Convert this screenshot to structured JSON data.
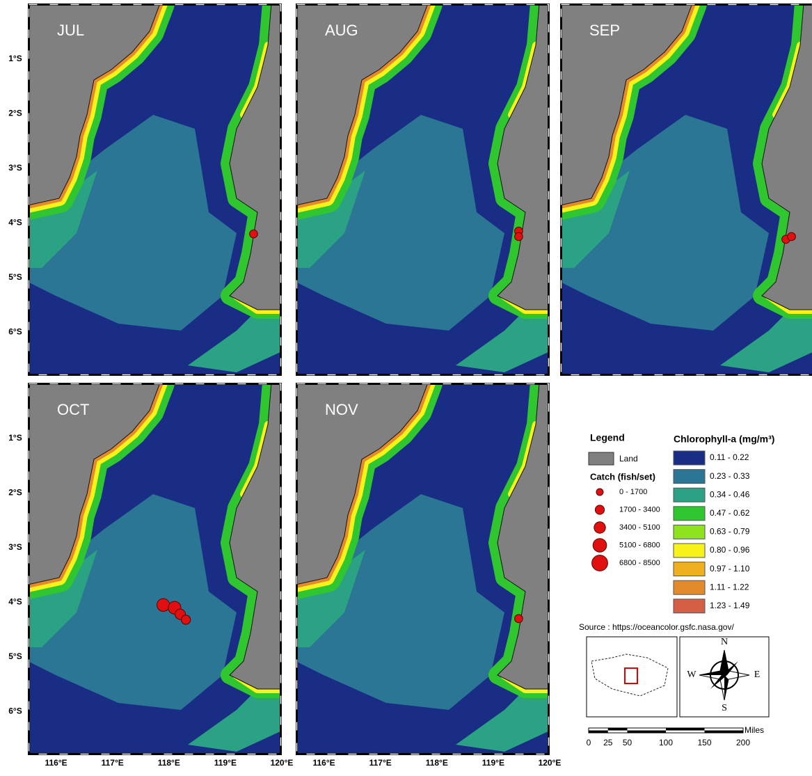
{
  "map": {
    "xlim": [
      115.5,
      120
    ],
    "ylim": [
      0.02,
      -6.8
    ],
    "lat_ticks": [
      {
        "value": -1,
        "label": "1°S"
      },
      {
        "value": -2,
        "label": "2°S"
      },
      {
        "value": -3,
        "label": "3°S"
      },
      {
        "value": -4,
        "label": "4°S"
      },
      {
        "value": -5,
        "label": "5°S"
      },
      {
        "value": -6,
        "label": "6°S"
      }
    ],
    "lon_ticks": [
      {
        "value": 116,
        "label": "116°E"
      },
      {
        "value": 117,
        "label": "117°E"
      },
      {
        "value": 118,
        "label": "118°E"
      },
      {
        "value": 119,
        "label": "119°E"
      },
      {
        "value": 120,
        "label": "120°E"
      }
    ],
    "panels": [
      {
        "label": "JUL",
        "points": [
          {
            "lon": 119.5,
            "lat": -4.2,
            "catch": 1000
          }
        ]
      },
      {
        "label": "AUG",
        "points": [
          {
            "lon": 119.45,
            "lat": -4.15,
            "catch": 1000
          },
          {
            "lon": 119.45,
            "lat": -4.25,
            "catch": 1000
          }
        ]
      },
      {
        "label": "SEP",
        "points": [
          {
            "lon": 119.5,
            "lat": -4.3,
            "catch": 1000
          },
          {
            "lon": 119.6,
            "lat": -4.25,
            "catch": 1000
          }
        ]
      },
      {
        "label": "OCT",
        "points": [
          {
            "lon": 117.9,
            "lat": -4.05,
            "catch": 5000
          },
          {
            "lon": 118.1,
            "lat": -4.1,
            "catch": 5000
          },
          {
            "lon": 118.2,
            "lat": -4.22,
            "catch": 3000
          },
          {
            "lon": 118.3,
            "lat": -4.32,
            "catch": 2000
          }
        ]
      },
      {
        "label": "NOV",
        "points": [
          {
            "lon": 119.45,
            "lat": -4.3,
            "catch": 1000
          }
        ]
      }
    ]
  },
  "legend": {
    "title": "Legend",
    "land": "Land",
    "catch_title": "Catch (fish/set)",
    "catch_classes": [
      "0 - 1700",
      "1700 - 3400",
      "3400 - 5100",
      "5100 - 6800",
      "6800 - 8500"
    ],
    "chl_title": "Chlorophyll-a (mg/m³)",
    "chl_classes": [
      {
        "label": "0.11 - 0.22",
        "color": "#1a2d85"
      },
      {
        "label": "0.23 - 0.33",
        "color": "#2b7595"
      },
      {
        "label": "0.34 - 0.46",
        "color": "#2aa283"
      },
      {
        "label": "0.47 - 0.62",
        "color": "#2fc62f"
      },
      {
        "label": "0.63 - 0.79",
        "color": "#8fe31c"
      },
      {
        "label": "0.80 - 0.96",
        "color": "#f6f21a"
      },
      {
        "label": "0.97 - 1.10",
        "color": "#eeb01e"
      },
      {
        "label": "1.11 - 1.22",
        "color": "#e38a2b"
      },
      {
        "label": "1.23 - 1.49",
        "color": "#d55f44"
      }
    ]
  },
  "source": "Source : https://oceancolor.gsfc.nasa.gov/",
  "compass": {
    "n": "N",
    "s": "S",
    "e": "E",
    "w": "W"
  },
  "scale_bar": {
    "unit": "Miles",
    "ticks": [
      0,
      25,
      50,
      100,
      150,
      200
    ]
  }
}
